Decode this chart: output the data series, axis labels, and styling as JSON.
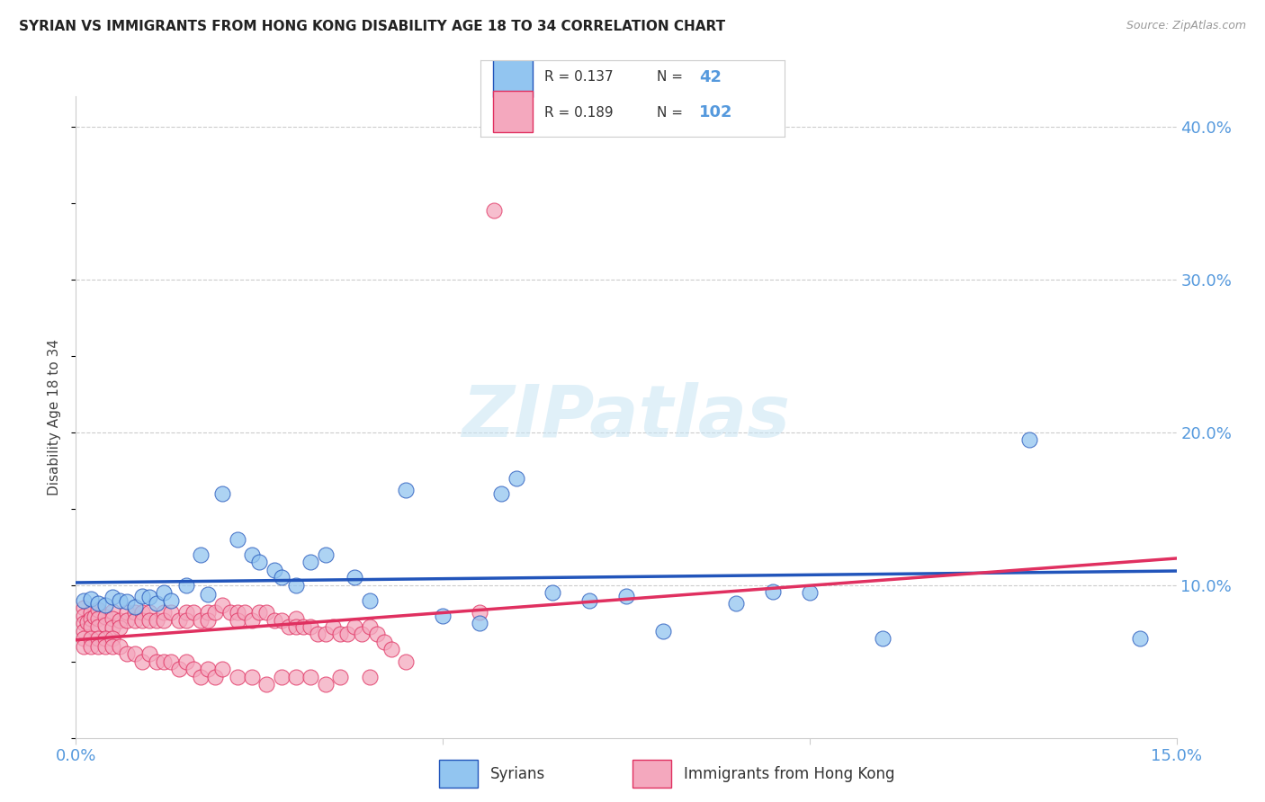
{
  "title": "SYRIAN VS IMMIGRANTS FROM HONG KONG DISABILITY AGE 18 TO 34 CORRELATION CHART",
  "source": "Source: ZipAtlas.com",
  "ylabel": "Disability Age 18 to 34",
  "xlim": [
    0.0,
    0.15
  ],
  "ylim": [
    0.0,
    0.42
  ],
  "xticks": [
    0.0,
    0.05,
    0.1,
    0.15
  ],
  "xtick_labels": [
    "0.0%",
    "",
    "",
    "15.0%"
  ],
  "yticks_right": [
    0.1,
    0.2,
    0.3,
    0.4
  ],
  "ytick_labels_right": [
    "10.0%",
    "20.0%",
    "30.0%",
    "40.0%"
  ],
  "syrian_color": "#92C5F0",
  "hk_color": "#F4A8BE",
  "syrian_line_color": "#2255BB",
  "hk_line_color": "#E03060",
  "legend_label_syrian": "Syrians",
  "legend_label_hk": "Immigrants from Hong Kong",
  "watermark": "ZIPatlas",
  "tick_color": "#5599DD",
  "grid_color": "#CCCCCC",
  "syrian_x": [
    0.001,
    0.002,
    0.003,
    0.004,
    0.005,
    0.006,
    0.007,
    0.008,
    0.009,
    0.01,
    0.011,
    0.012,
    0.013,
    0.015,
    0.017,
    0.018,
    0.02,
    0.022,
    0.024,
    0.025,
    0.027,
    0.028,
    0.03,
    0.032,
    0.034,
    0.038,
    0.04,
    0.045,
    0.05,
    0.055,
    0.058,
    0.06,
    0.065,
    0.07,
    0.075,
    0.08,
    0.09,
    0.095,
    0.1,
    0.11,
    0.13,
    0.145
  ],
  "syrian_y": [
    0.09,
    0.091,
    0.088,
    0.087,
    0.092,
    0.09,
    0.089,
    0.086,
    0.093,
    0.092,
    0.088,
    0.095,
    0.09,
    0.1,
    0.12,
    0.094,
    0.16,
    0.13,
    0.12,
    0.115,
    0.11,
    0.105,
    0.1,
    0.115,
    0.12,
    0.105,
    0.09,
    0.162,
    0.08,
    0.075,
    0.16,
    0.17,
    0.095,
    0.09,
    0.093,
    0.07,
    0.088,
    0.096,
    0.095,
    0.065,
    0.195,
    0.065
  ],
  "hk_x": [
    0.001,
    0.001,
    0.001,
    0.001,
    0.0015,
    0.002,
    0.002,
    0.002,
    0.0025,
    0.003,
    0.003,
    0.003,
    0.004,
    0.004,
    0.005,
    0.005,
    0.005,
    0.006,
    0.006,
    0.007,
    0.007,
    0.008,
    0.008,
    0.009,
    0.009,
    0.01,
    0.01,
    0.011,
    0.012,
    0.012,
    0.013,
    0.014,
    0.015,
    0.015,
    0.016,
    0.017,
    0.018,
    0.018,
    0.019,
    0.02,
    0.021,
    0.022,
    0.022,
    0.023,
    0.024,
    0.025,
    0.026,
    0.027,
    0.028,
    0.029,
    0.03,
    0.03,
    0.031,
    0.032,
    0.033,
    0.034,
    0.035,
    0.036,
    0.037,
    0.038,
    0.039,
    0.04,
    0.041,
    0.042,
    0.043,
    0.001,
    0.001,
    0.002,
    0.002,
    0.003,
    0.003,
    0.004,
    0.004,
    0.005,
    0.005,
    0.006,
    0.007,
    0.008,
    0.009,
    0.01,
    0.011,
    0.012,
    0.013,
    0.014,
    0.015,
    0.016,
    0.017,
    0.018,
    0.019,
    0.02,
    0.022,
    0.024,
    0.026,
    0.028,
    0.03,
    0.032,
    0.034,
    0.036,
    0.04,
    0.045,
    0.055,
    0.057
  ],
  "hk_y": [
    0.085,
    0.08,
    0.075,
    0.07,
    0.076,
    0.082,
    0.078,
    0.073,
    0.079,
    0.084,
    0.078,
    0.073,
    0.079,
    0.074,
    0.083,
    0.078,
    0.072,
    0.077,
    0.072,
    0.082,
    0.077,
    0.082,
    0.077,
    0.082,
    0.077,
    0.082,
    0.077,
    0.077,
    0.082,
    0.077,
    0.082,
    0.077,
    0.082,
    0.077,
    0.082,
    0.077,
    0.082,
    0.077,
    0.082,
    0.087,
    0.082,
    0.082,
    0.077,
    0.082,
    0.077,
    0.082,
    0.082,
    0.077,
    0.077,
    0.073,
    0.078,
    0.073,
    0.073,
    0.073,
    0.068,
    0.068,
    0.073,
    0.068,
    0.068,
    0.073,
    0.068,
    0.073,
    0.068,
    0.063,
    0.058,
    0.065,
    0.06,
    0.065,
    0.06,
    0.065,
    0.06,
    0.065,
    0.06,
    0.065,
    0.06,
    0.06,
    0.055,
    0.055,
    0.05,
    0.055,
    0.05,
    0.05,
    0.05,
    0.045,
    0.05,
    0.045,
    0.04,
    0.045,
    0.04,
    0.045,
    0.04,
    0.04,
    0.035,
    0.04,
    0.04,
    0.04,
    0.035,
    0.04,
    0.04,
    0.05,
    0.082,
    0.345
  ]
}
